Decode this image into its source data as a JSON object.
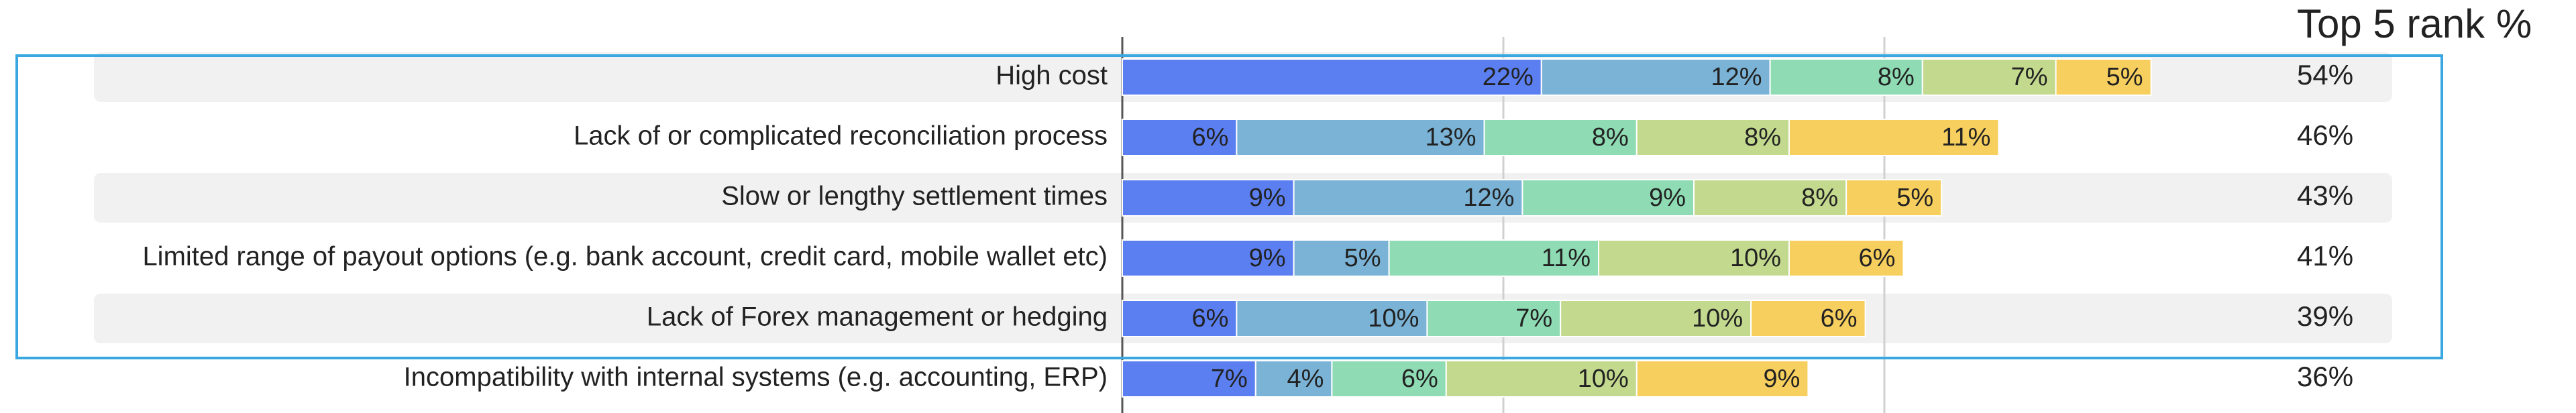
{
  "chart_data": {
    "type": "stacked-bar-horizontal",
    "categories": [
      "High cost",
      "Lack of or complicated reconciliation process",
      "Slow or lengthy settlement times",
      "Limited range of payout options (e.g. bank account, credit card, mobile wallet etc)",
      "Lack of Forex management or hedging",
      "Incompatibility with internal systems (e.g. accounting, ERP)"
    ],
    "series": [
      {
        "color": "#5b7ff0",
        "values": [
          22,
          6,
          9,
          9,
          6,
          7
        ],
        "value_labels": [
          "22%",
          "6%",
          "9%",
          "9%",
          "6%",
          "7%"
        ]
      },
      {
        "color": "#7ab3d6",
        "values": [
          12,
          13,
          12,
          5,
          10,
          4
        ],
        "value_labels": [
          "12%",
          "13%",
          "12%",
          "5%",
          "10%",
          "4%"
        ]
      },
      {
        "color": "#8edbb4",
        "values": [
          8,
          8,
          9,
          11,
          7,
          6
        ],
        "value_labels": [
          "8%",
          "8%",
          "9%",
          "11%",
          "7%",
          "6%"
        ]
      },
      {
        "color": "#c2d98e",
        "values": [
          7,
          8,
          8,
          10,
          10,
          10
        ],
        "value_labels": [
          "7%",
          "8%",
          "8%",
          "10%",
          "10%",
          "10%"
        ]
      },
      {
        "color": "#f7cf5e",
        "values": [
          5,
          11,
          5,
          6,
          6,
          9
        ],
        "value_labels": [
          "5%",
          "11%",
          "5%",
          "6%",
          "6%",
          "9%"
        ]
      }
    ],
    "xlim": [
      0,
      60
    ],
    "gridlines": [
      0,
      20,
      40
    ],
    "grid": true,
    "top5": {
      "title": "Top 5 rank %",
      "values": [
        54,
        46,
        43,
        41,
        39,
        36
      ],
      "value_labels": [
        "54%",
        "46%",
        "43%",
        "41%",
        "39%",
        "36%"
      ]
    }
  }
}
